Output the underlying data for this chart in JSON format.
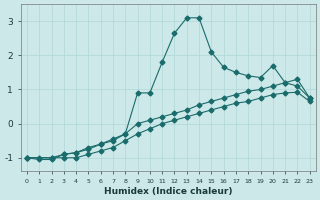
{
  "xlabel": "Humidex (Indice chaleur)",
  "ylabel": "",
  "background_color": "#cce8e8",
  "line_color": "#1a6b6b",
  "xlim": [
    -0.5,
    23.5
  ],
  "ylim": [
    -1.4,
    3.5
  ],
  "yticks": [
    -1,
    0,
    1,
    2,
    3
  ],
  "xticks": [
    0,
    1,
    2,
    3,
    4,
    5,
    6,
    7,
    8,
    9,
    10,
    11,
    12,
    13,
    14,
    15,
    16,
    17,
    18,
    19,
    20,
    21,
    22,
    23
  ],
  "series1_x": [
    0,
    1,
    2,
    3,
    4,
    5,
    6,
    7,
    8,
    9,
    10,
    11,
    12,
    13,
    14,
    15,
    16,
    17,
    18,
    19,
    20,
    21,
    22,
    23
  ],
  "series1_y": [
    -1.0,
    -1.05,
    -1.05,
    -0.9,
    -0.85,
    -0.7,
    -0.6,
    -0.5,
    -0.3,
    0.9,
    0.9,
    1.8,
    2.65,
    3.1,
    3.1,
    2.1,
    1.65,
    1.5,
    1.4,
    1.35,
    1.7,
    1.2,
    1.1,
    0.75
  ],
  "series2_x": [
    0,
    2,
    3,
    4,
    5,
    6,
    7,
    8,
    9,
    10,
    11,
    12,
    13,
    14,
    15,
    16,
    17,
    18,
    19,
    20,
    21,
    22,
    23
  ],
  "series2_y": [
    -1.0,
    -1.0,
    -0.9,
    -0.85,
    -0.75,
    -0.6,
    -0.45,
    -0.3,
    0.0,
    0.1,
    0.2,
    0.3,
    0.4,
    0.55,
    0.65,
    0.75,
    0.85,
    0.95,
    1.0,
    1.1,
    1.2,
    1.3,
    0.75
  ],
  "series3_x": [
    0,
    1,
    2,
    3,
    4,
    5,
    6,
    7,
    8,
    9,
    10,
    11,
    12,
    13,
    14,
    15,
    16,
    17,
    18,
    19,
    20,
    21,
    22,
    23
  ],
  "series3_y": [
    -1.0,
    -1.0,
    -1.0,
    -1.0,
    -1.0,
    -0.9,
    -0.8,
    -0.7,
    -0.5,
    -0.3,
    -0.15,
    0.0,
    0.1,
    0.2,
    0.3,
    0.4,
    0.5,
    0.6,
    0.65,
    0.75,
    0.85,
    0.9,
    0.92,
    0.65
  ]
}
